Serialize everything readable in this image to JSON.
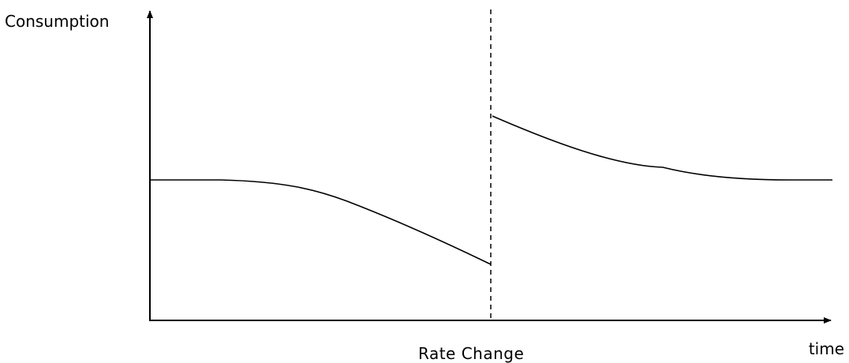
{
  "diagram": {
    "y_axis_label": "Consumption",
    "x_axis_label": "time",
    "event_label": "Rate Change"
  },
  "colors": {
    "ink": "#000000",
    "background": "#ffffff"
  }
}
